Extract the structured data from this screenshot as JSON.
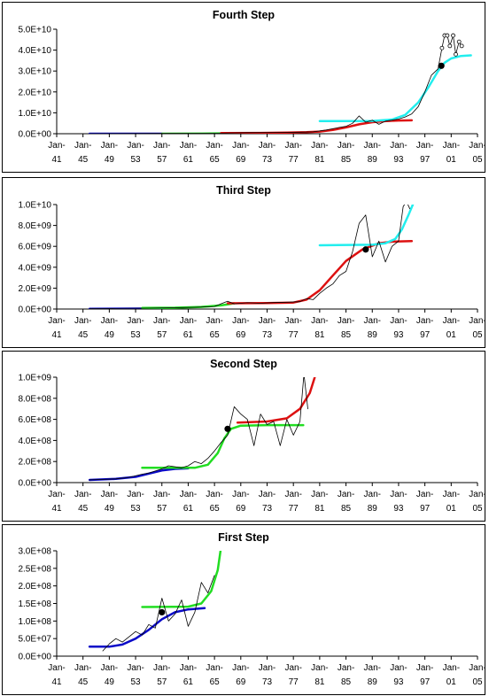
{
  "x_ticks": [
    {
      "l1": "Jan-",
      "l2": "41",
      "year": 1941
    },
    {
      "l1": "Jan-",
      "l2": "45",
      "year": 1945
    },
    {
      "l1": "Jan-",
      "l2": "49",
      "year": 1949
    },
    {
      "l1": "Jan-",
      "l2": "53",
      "year": 1953
    },
    {
      "l1": "Jan-",
      "l2": "57",
      "year": 1957
    },
    {
      "l1": "Jan-",
      "l2": "61",
      "year": 1961
    },
    {
      "l1": "Jan-",
      "l2": "65",
      "year": 1965
    },
    {
      "l1": "Jan-",
      "l2": "69",
      "year": 1969
    },
    {
      "l1": "Jan-",
      "l2": "73",
      "year": 1973
    },
    {
      "l1": "Jan-",
      "l2": "77",
      "year": 1977
    },
    {
      "l1": "Jan-",
      "l2": "81",
      "year": 1981
    },
    {
      "l1": "Jan-",
      "l2": "85",
      "year": 1985
    },
    {
      "l1": "Jan-",
      "l2": "89",
      "year": 1989
    },
    {
      "l1": "Jan-",
      "l2": "93",
      "year": 1993
    },
    {
      "l1": "Jan-",
      "l2": "97",
      "year": 1997
    },
    {
      "l1": "Jan-",
      "l2": "01",
      "year": 2001
    },
    {
      "l1": "Jan-",
      "l2": "05",
      "year": 2005
    }
  ],
  "colors": {
    "blue": "#0a0ac8",
    "green": "#22dd22",
    "red": "#dd1111",
    "cyan": "#22eeee",
    "data": "#000000"
  },
  "chart_data": [
    {
      "type": "line",
      "title": "Fourth Step",
      "xlim": [
        1941,
        2005
      ],
      "ylim": [
        0,
        50000000000
      ],
      "y_ticks": [
        {
          "v": 0,
          "label": "0.0E+00"
        },
        {
          "v": 10000000000,
          "label": "1.0E+10"
        },
        {
          "v": 20000000000,
          "label": "2.0E+10"
        },
        {
          "v": 30000000000,
          "label": "3.0E+10"
        },
        {
          "v": 40000000000,
          "label": "4.0E+10"
        },
        {
          "v": 50000000000,
          "label": "5.0E+10"
        }
      ],
      "series": [
        {
          "color": "blue",
          "width": 2.5,
          "x": [
            1946,
            1957
          ],
          "y": [
            0,
            0
          ]
        },
        {
          "color": "green",
          "width": 2.5,
          "x": [
            1957,
            1963,
            1966,
            1969
          ],
          "y": [
            0,
            50000000,
            150000000,
            300000000
          ]
        },
        {
          "color": "red",
          "width": 2.5,
          "x": [
            1966,
            1972,
            1976,
            1979,
            1981,
            1983,
            1985,
            1987,
            1989,
            1991,
            1993,
            1995
          ],
          "y": [
            300000000,
            400000000,
            550000000,
            700000000,
            1000000000,
            1800000000,
            3000000000,
            4500000000,
            5500000000,
            6000000000,
            6300000000,
            6400000000
          ]
        },
        {
          "color": "cyan",
          "width": 2.5,
          "x": [
            1981,
            1989,
            1992,
            1994,
            1996,
            1997.5,
            1999,
            2000,
            2001,
            2002.5,
            2004
          ],
          "y": [
            6000000000,
            6100000000,
            6800000000,
            9000000000,
            15000000000,
            22000000000,
            30000000000,
            34000000000,
            36000000000,
            37200000000,
            37500000000
          ]
        },
        {
          "color": "data",
          "width": 0.8,
          "x": [
            1946,
            1950,
            1954,
            1958,
            1962,
            1966,
            1970,
            1974,
            1978,
            1980,
            1982,
            1984,
            1985,
            1986,
            1987,
            1988,
            1989,
            1990,
            1991,
            1992,
            1993,
            1994,
            1995,
            1996,
            1997,
            1998,
            1999,
            1999.6,
            2000,
            2000.4,
            2000.8,
            2001.3,
            2001.7,
            2002.2,
            2002.6
          ],
          "y": [
            20000000,
            40000000,
            70000000,
            120000000,
            150000000,
            250000000,
            500000000,
            600000000,
            700000000,
            900000000,
            1800000000,
            3000000000,
            3500000000,
            5000000000,
            8500000000,
            5500000000,
            6500000000,
            4500000000,
            6000000000,
            6500000000,
            7000000000,
            8000000000,
            9500000000,
            13000000000,
            20000000000,
            28000000000,
            31000000000,
            41000000000,
            47000000000,
            47000000000,
            42000000000,
            47000000000,
            38000000000,
            44000000000,
            42000000000
          ],
          "markers": true
        },
        {
          "color": "data",
          "width": 0,
          "x": [
            1999.5
          ],
          "y": [
            32500000000
          ],
          "dot": true
        }
      ]
    },
    {
      "type": "line",
      "title": "Third Step",
      "xlim": [
        1941,
        2005
      ],
      "ylim": [
        0,
        10000000000
      ],
      "y_ticks": [
        {
          "v": 0,
          "label": "0.0E+00"
        },
        {
          "v": 2000000000,
          "label": "2.0E+09"
        },
        {
          "v": 4000000000,
          "label": "4.0E+09"
        },
        {
          "v": 6000000000,
          "label": "6.0E+09"
        },
        {
          "v": 8000000000,
          "label": "8.0E+09"
        },
        {
          "v": 10000000000,
          "label": "1.0E+10"
        }
      ],
      "series": [
        {
          "color": "blue",
          "width": 2.5,
          "x": [
            1946,
            1957
          ],
          "y": [
            20000000,
            50000000
          ]
        },
        {
          "color": "green",
          "width": 2.5,
          "x": [
            1954,
            1959,
            1963,
            1966,
            1968
          ],
          "y": [
            100000000,
            130000000,
            200000000,
            350000000,
            550000000
          ]
        },
        {
          "color": "red",
          "width": 2.5,
          "x": [
            1967,
            1973,
            1977,
            1979,
            1981,
            1983,
            1985,
            1987.5,
            1990,
            1992,
            1995
          ],
          "y": [
            550000000,
            580000000,
            620000000,
            900000000,
            1800000000,
            3200000000,
            4600000000,
            5700000000,
            6300000000,
            6450000000,
            6500000000
          ]
        },
        {
          "color": "cyan",
          "width": 2.5,
          "x": [
            1981,
            1989,
            1991,
            1992.5,
            1993.5,
            1994.5,
            1995.5
          ],
          "y": [
            6100000000,
            6150000000,
            6300000000,
            6700000000,
            7600000000,
            9000000000,
            10500000000
          ]
        },
        {
          "color": "data",
          "width": 0.8,
          "x": [
            1946,
            1950,
            1954,
            1958,
            1962,
            1965,
            1966,
            1967,
            1968,
            1970,
            1972,
            1974,
            1976,
            1978,
            1979,
            1980,
            1981,
            1982,
            1983,
            1984,
            1985,
            1986,
            1987,
            1988,
            1989,
            1990,
            1991,
            1992,
            1993,
            1993.7,
            1994.2,
            1994.7
          ],
          "y": [
            30000000,
            50000000,
            80000000,
            120000000,
            170000000,
            250000000,
            500000000,
            750000000,
            500000000,
            600000000,
            550000000,
            620000000,
            650000000,
            700000000,
            1000000000,
            900000000,
            1500000000,
            2000000000,
            2400000000,
            3200000000,
            3600000000,
            5500000000,
            8200000000,
            9000000000,
            5000000000,
            6500000000,
            4500000000,
            6000000000,
            6500000000,
            9800000000,
            10300000000,
            9600000000
          ]
        },
        {
          "color": "data",
          "width": 0,
          "x": [
            1988
          ],
          "y": [
            5700000000
          ],
          "dot": true
        }
      ]
    },
    {
      "type": "line",
      "title": "Second Step",
      "xlim": [
        1941,
        2005
      ],
      "ylim": [
        0,
        1000000000
      ],
      "y_ticks": [
        {
          "v": 0,
          "label": "0.0E+00"
        },
        {
          "v": 200000000,
          "label": "2.0E+08"
        },
        {
          "v": 400000000,
          "label": "4.0E+08"
        },
        {
          "v": 600000000,
          "label": "6.0E+08"
        },
        {
          "v": 800000000,
          "label": "8.0E+08"
        },
        {
          "v": 1000000000,
          "label": "1.0E+09"
        }
      ],
      "series": [
        {
          "color": "blue",
          "width": 2.5,
          "x": [
            1946,
            1950,
            1953,
            1955,
            1957,
            1959,
            1961
          ],
          "y": [
            25000000,
            35000000,
            55000000,
            85000000,
            115000000,
            130000000,
            135000000
          ]
        },
        {
          "color": "green",
          "width": 2.5,
          "x": [
            1954,
            1962,
            1964,
            1965.5,
            1966.5,
            1967.5,
            1969,
            1973,
            1978.5
          ],
          "y": [
            140000000,
            140000000,
            170000000,
            280000000,
            420000000,
            510000000,
            540000000,
            545000000,
            545000000
          ]
        },
        {
          "color": "red",
          "width": 2.5,
          "x": [
            1968.5,
            1973,
            1976,
            1978,
            1979.5,
            1980.5
          ],
          "y": [
            570000000,
            580000000,
            610000000,
            700000000,
            850000000,
            1050000000
          ]
        },
        {
          "color": "data",
          "width": 0.8,
          "x": [
            1946,
            1948,
            1950,
            1952,
            1954,
            1955,
            1956,
            1957,
            1958,
            1959,
            1960,
            1961,
            1962,
            1963,
            1964,
            1965,
            1966,
            1967,
            1968,
            1969,
            1970,
            1971,
            1972,
            1973,
            1974,
            1975,
            1976,
            1977,
            1978,
            1978.6,
            1979.2
          ],
          "y": [
            25000000,
            30000000,
            35000000,
            50000000,
            80000000,
            90000000,
            110000000,
            130000000,
            160000000,
            150000000,
            140000000,
            160000000,
            200000000,
            180000000,
            230000000,
            300000000,
            380000000,
            450000000,
            720000000,
            650000000,
            600000000,
            350000000,
            650000000,
            550000000,
            580000000,
            350000000,
            600000000,
            450000000,
            580000000,
            1030000000,
            700000000
          ]
        },
        {
          "color": "data",
          "width": 0,
          "x": [
            1967
          ],
          "y": [
            510000000
          ],
          "dot": true
        }
      ]
    },
    {
      "type": "line",
      "title": "First Step",
      "xlim": [
        1941,
        2005
      ],
      "ylim": [
        0,
        300000000
      ],
      "y_ticks": [
        {
          "v": 0,
          "label": "0.0E+00"
        },
        {
          "v": 50000000,
          "label": "5.0E+07"
        },
        {
          "v": 100000000,
          "label": "1.0E+08"
        },
        {
          "v": 150000000,
          "label": "1.5E+08"
        },
        {
          "v": 200000000,
          "label": "2.0E+08"
        },
        {
          "v": 250000000,
          "label": "2.5E+08"
        },
        {
          "v": 300000000,
          "label": "3.0E+08"
        }
      ],
      "series": [
        {
          "color": "blue",
          "width": 2.5,
          "x": [
            1946,
            1949,
            1951,
            1953,
            1955,
            1957,
            1959,
            1961,
            1963.5
          ],
          "y": [
            27000000,
            27000000,
            33000000,
            50000000,
            75000000,
            105000000,
            125000000,
            133000000,
            137000000
          ]
        },
        {
          "color": "green",
          "width": 2.5,
          "x": [
            1954,
            1961,
            1963,
            1964.5,
            1965.5,
            1966
          ],
          "y": [
            140000000,
            141000000,
            150000000,
            185000000,
            245000000,
            310000000
          ]
        },
        {
          "color": "data",
          "width": 0.8,
          "x": [
            1948,
            1949,
            1950,
            1951,
            1952,
            1953,
            1954,
            1955,
            1956,
            1957,
            1958,
            1959,
            1960,
            1961,
            1962,
            1963,
            1964,
            1965
          ],
          "y": [
            15000000,
            35000000,
            50000000,
            40000000,
            55000000,
            70000000,
            60000000,
            90000000,
            80000000,
            165000000,
            100000000,
            120000000,
            160000000,
            85000000,
            125000000,
            210000000,
            180000000,
            230000000
          ]
        },
        {
          "color": "data",
          "width": 0,
          "x": [
            1957
          ],
          "y": [
            125000000
          ],
          "dot": true
        }
      ]
    }
  ]
}
